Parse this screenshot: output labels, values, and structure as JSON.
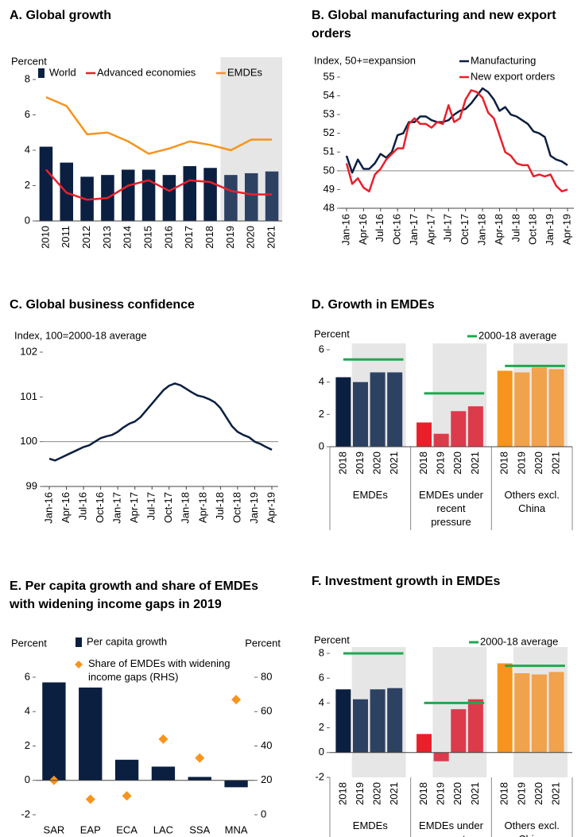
{
  "chart_data": [
    {
      "type": "combo",
      "title": "A. Global growth",
      "ylabel": "Percent",
      "categories": [
        "2010",
        "2011",
        "2012",
        "2013",
        "2014",
        "2015",
        "2016",
        "2017",
        "2018",
        "2019",
        "2020",
        "2021"
      ],
      "shaded_from": "2019",
      "ylim": [
        0,
        8
      ],
      "yticks": [
        0,
        2,
        4,
        6,
        8
      ],
      "series": [
        {
          "name": "World",
          "kind": "bar",
          "color": "#0b1f41",
          "forecast_color": "#2d4263",
          "values": [
            4.2,
            3.3,
            2.5,
            2.6,
            2.9,
            2.9,
            2.6,
            3.1,
            3.0,
            2.6,
            2.7,
            2.8
          ]
        },
        {
          "name": "Advanced economies",
          "kind": "line",
          "color": "#e8202a",
          "values": [
            2.9,
            1.6,
            1.2,
            1.3,
            2.0,
            2.3,
            1.7,
            2.3,
            2.2,
            1.7,
            1.5,
            1.5
          ]
        },
        {
          "name": "EMDEs",
          "kind": "line",
          "color": "#f7941d",
          "values": [
            7.0,
            6.5,
            4.9,
            5.0,
            4.5,
            3.8,
            4.1,
            4.5,
            4.3,
            4.0,
            4.6,
            4.6
          ]
        }
      ]
    },
    {
      "type": "line",
      "title": "B. Global manufacturing and new export orders",
      "ylabel": "Index, 50+=expansion",
      "categories": [
        "Jan-16",
        null,
        null,
        "Apr-16",
        null,
        null,
        "Jul-16",
        null,
        null,
        "Oct-16",
        null,
        null,
        "Jan-17",
        null,
        null,
        "Apr-17",
        null,
        null,
        "Jul-17",
        null,
        null,
        "Oct-17",
        null,
        null,
        "Jan-18",
        null,
        null,
        "Apr-18",
        null,
        null,
        "Jul-18",
        null,
        null,
        "Oct-18",
        null,
        null,
        "Jan-19",
        null,
        null,
        "Apr-19"
      ],
      "ylim": [
        48,
        55
      ],
      "yticks": [
        48,
        49,
        50,
        51,
        52,
        53,
        54,
        55
      ],
      "reference_line": 50,
      "series": [
        {
          "name": "Manufacturing",
          "color": "#0b1f41",
          "values": [
            50.8,
            49.9,
            50.6,
            50.1,
            50.1,
            50.4,
            50.9,
            50.7,
            51.0,
            51.9,
            52.0,
            52.6,
            52.6,
            52.9,
            52.9,
            52.7,
            52.6,
            52.6,
            52.7,
            53.0,
            53.2,
            53.3,
            53.6,
            54.0,
            54.4,
            54.2,
            53.8,
            53.2,
            53.4,
            53.0,
            52.9,
            52.7,
            52.5,
            52.1,
            52.0,
            51.8,
            50.8,
            50.6,
            50.5,
            50.3
          ]
        },
        {
          "name": "New export orders",
          "color": "#e8202a",
          "values": [
            50.4,
            49.3,
            49.6,
            49.1,
            48.9,
            49.8,
            50.1,
            50.6,
            50.9,
            51.2,
            51.2,
            52.5,
            52.8,
            52.5,
            52.5,
            52.3,
            52.6,
            52.5,
            53.5,
            52.6,
            52.8,
            53.8,
            54.3,
            54.2,
            53.9,
            53.1,
            52.8,
            51.9,
            51.0,
            50.8,
            50.4,
            50.3,
            50.3,
            49.7,
            49.8,
            49.7,
            49.8,
            49.2,
            48.9,
            49.0
          ]
        }
      ]
    },
    {
      "type": "line",
      "title": "C. Global business confidence",
      "ylabel": "Index, 100=2000-18 average",
      "categories": [
        "Jan-16",
        null,
        null,
        "Apr-16",
        null,
        null,
        "Jul-16",
        null,
        null,
        "Oct-16",
        null,
        null,
        "Jan-17",
        null,
        null,
        "Apr-17",
        null,
        null,
        "Jul-17",
        null,
        null,
        "Oct-17",
        null,
        null,
        "Jan-18",
        null,
        null,
        "Apr-18",
        null,
        null,
        "Jul-18",
        null,
        null,
        "Oct-18",
        null,
        null,
        "Jan-19",
        null,
        null,
        "Apr-19"
      ],
      "ylim": [
        99,
        102
      ],
      "yticks": [
        99,
        100,
        101,
        102
      ],
      "reference_line": 100,
      "series": [
        {
          "color": "#0b1f41",
          "values": [
            99.62,
            99.58,
            99.64,
            99.7,
            99.76,
            99.82,
            99.88,
            99.92,
            100.0,
            100.08,
            100.12,
            100.15,
            100.22,
            100.32,
            100.4,
            100.45,
            100.55,
            100.7,
            100.85,
            101.0,
            101.15,
            101.25,
            101.3,
            101.26,
            101.18,
            101.1,
            101.03,
            101.0,
            100.95,
            100.88,
            100.75,
            100.55,
            100.35,
            100.22,
            100.15,
            100.1,
            100.0,
            99.95,
            99.88,
            99.82
          ]
        }
      ]
    },
    {
      "type": "grouped_bar",
      "title": "D. Growth in EMDEs",
      "ylabel": "Percent",
      "ylim": [
        0,
        6
      ],
      "yticks": [
        0,
        2,
        4,
        6
      ],
      "shaded_from": "2019",
      "average_label": "2000-18 average",
      "average_color": "#1fa84f",
      "groups": [
        {
          "name": "EMDEs",
          "categories": [
            "2018",
            "2019",
            "2020",
            "2021"
          ],
          "values": [
            4.3,
            4.0,
            4.6,
            4.6
          ],
          "average": 5.4,
          "color": "#0b1f41",
          "forecast_color": "#2d4263"
        },
        {
          "name": "EMDEs under recent pressure",
          "categories": [
            "2018",
            "2019",
            "2020",
            "2021"
          ],
          "values": [
            1.5,
            0.8,
            2.2,
            2.5
          ],
          "average": 3.3,
          "color": "#e8202a",
          "forecast_color": "#dc3b4b"
        },
        {
          "name": "Others excl. China",
          "categories": [
            "2018",
            "2019",
            "2020",
            "2021"
          ],
          "values": [
            4.7,
            4.6,
            4.9,
            4.8
          ],
          "average": 5.0,
          "color": "#f7941d",
          "forecast_color": "#f0a24c"
        }
      ]
    },
    {
      "type": "combo",
      "title": "E. Per capita growth and share of EMDEs with widening income gaps in 2019",
      "ylabel": "Percent",
      "y2label": "Percent",
      "categories": [
        "SAR",
        "EAP",
        "ECA",
        "LAC",
        "SSA",
        "MNA"
      ],
      "ylim": [
        -2,
        6
      ],
      "yticks": [
        -2,
        0,
        2,
        4,
        6
      ],
      "y2lim": [
        0,
        80
      ],
      "y2ticks": [
        0,
        20,
        40,
        60,
        80
      ],
      "series": [
        {
          "name": "Per capita growth",
          "kind": "bar",
          "color": "#0b1f41",
          "values": [
            5.7,
            5.4,
            1.2,
            0.8,
            0.2,
            -0.4
          ]
        },
        {
          "name": "Share of EMDEs with widening income gaps (RHS)",
          "kind": "scatter",
          "axis": "y2",
          "color": "#f7941d",
          "values": [
            20,
            9,
            11,
            44,
            33,
            67
          ]
        }
      ]
    },
    {
      "type": "grouped_bar",
      "title": "F. Investment growth in EMDEs",
      "ylabel": "Percent",
      "ylim": [
        -2,
        8
      ],
      "yticks": [
        -2,
        0,
        2,
        4,
        6,
        8
      ],
      "shaded_from": "2019",
      "average_label": "2000-18 average",
      "average_color": "#1fa84f",
      "groups": [
        {
          "name": "EMDEs",
          "categories": [
            "2018",
            "2019",
            "2020",
            "2021"
          ],
          "values": [
            5.1,
            4.3,
            5.1,
            5.2
          ],
          "average": 8.0,
          "color": "#0b1f41",
          "forecast_color": "#2d4263"
        },
        {
          "name": "EMDEs under recent pressure",
          "categories": [
            "2018",
            "2019",
            "2020",
            "2021"
          ],
          "values": [
            1.5,
            -0.7,
            3.5,
            4.3
          ],
          "average": 4.0,
          "color": "#e8202a",
          "forecast_color": "#dc3b4b"
        },
        {
          "name": "Others excl. China",
          "categories": [
            "2018",
            "2019",
            "2020",
            "2021"
          ],
          "values": [
            7.2,
            6.4,
            6.3,
            6.5
          ],
          "average": 7.0,
          "color": "#f7941d",
          "forecast_color": "#f0a24c"
        }
      ]
    }
  ]
}
